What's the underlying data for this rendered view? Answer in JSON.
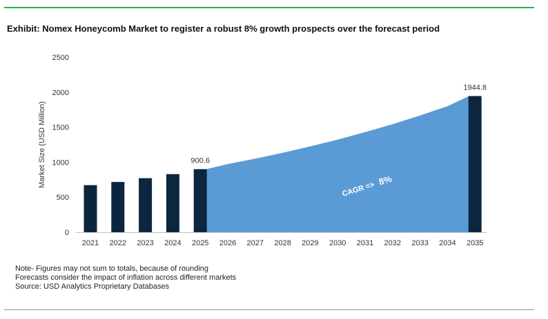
{
  "page": {
    "title": "Exhibit: Nomex Honeycomb Market to register a robust 8% growth prospects over the forecast period",
    "notes": [
      "Note- Figures may not sum to totals, because of rounding",
      "Forecasts consider the impact of inflation across different markets",
      "Source: USD Analytics Proprietary Databases"
    ]
  },
  "colors": {
    "bar": "#0d2640",
    "area": "#5b9bd5",
    "axis": "#bfbfbf",
    "text": "#333333",
    "top_rule": "#2db34a",
    "annotation_text": "#ffffff"
  },
  "chart_data": {
    "type": "bar",
    "title": "",
    "xlabel": "",
    "ylabel": "Market Size (USD Million)",
    "ylim": [
      0,
      2500
    ],
    "yticks": [
      0,
      500,
      1000,
      1500,
      2000,
      2500
    ],
    "categories": [
      "2021",
      "2022",
      "2023",
      "2024",
      "2025",
      "2026",
      "2027",
      "2028",
      "2029",
      "2030",
      "2031",
      "2032",
      "2033",
      "2034",
      "2035"
    ],
    "bars": [
      {
        "category": "2021",
        "value": 672
      },
      {
        "category": "2022",
        "value": 718
      },
      {
        "category": "2023",
        "value": 772
      },
      {
        "category": "2024",
        "value": 830
      },
      {
        "category": "2025",
        "value": 900.6,
        "label": "900.6"
      },
      {
        "category": "2035",
        "value": 1944.8,
        "label": "1944.8"
      }
    ],
    "forecast_area": {
      "x": [
        "2025",
        "2026",
        "2027",
        "2028",
        "2029",
        "2030",
        "2031",
        "2032",
        "2033",
        "2034",
        "2035"
      ],
      "values": [
        900.6,
        973,
        1050,
        1134,
        1225,
        1323,
        1429,
        1543,
        1667,
        1800,
        1944.8
      ]
    },
    "annotation": {
      "text": "CAGR =>",
      "value_text": "8%"
    },
    "grid": false,
    "legend": "none"
  }
}
